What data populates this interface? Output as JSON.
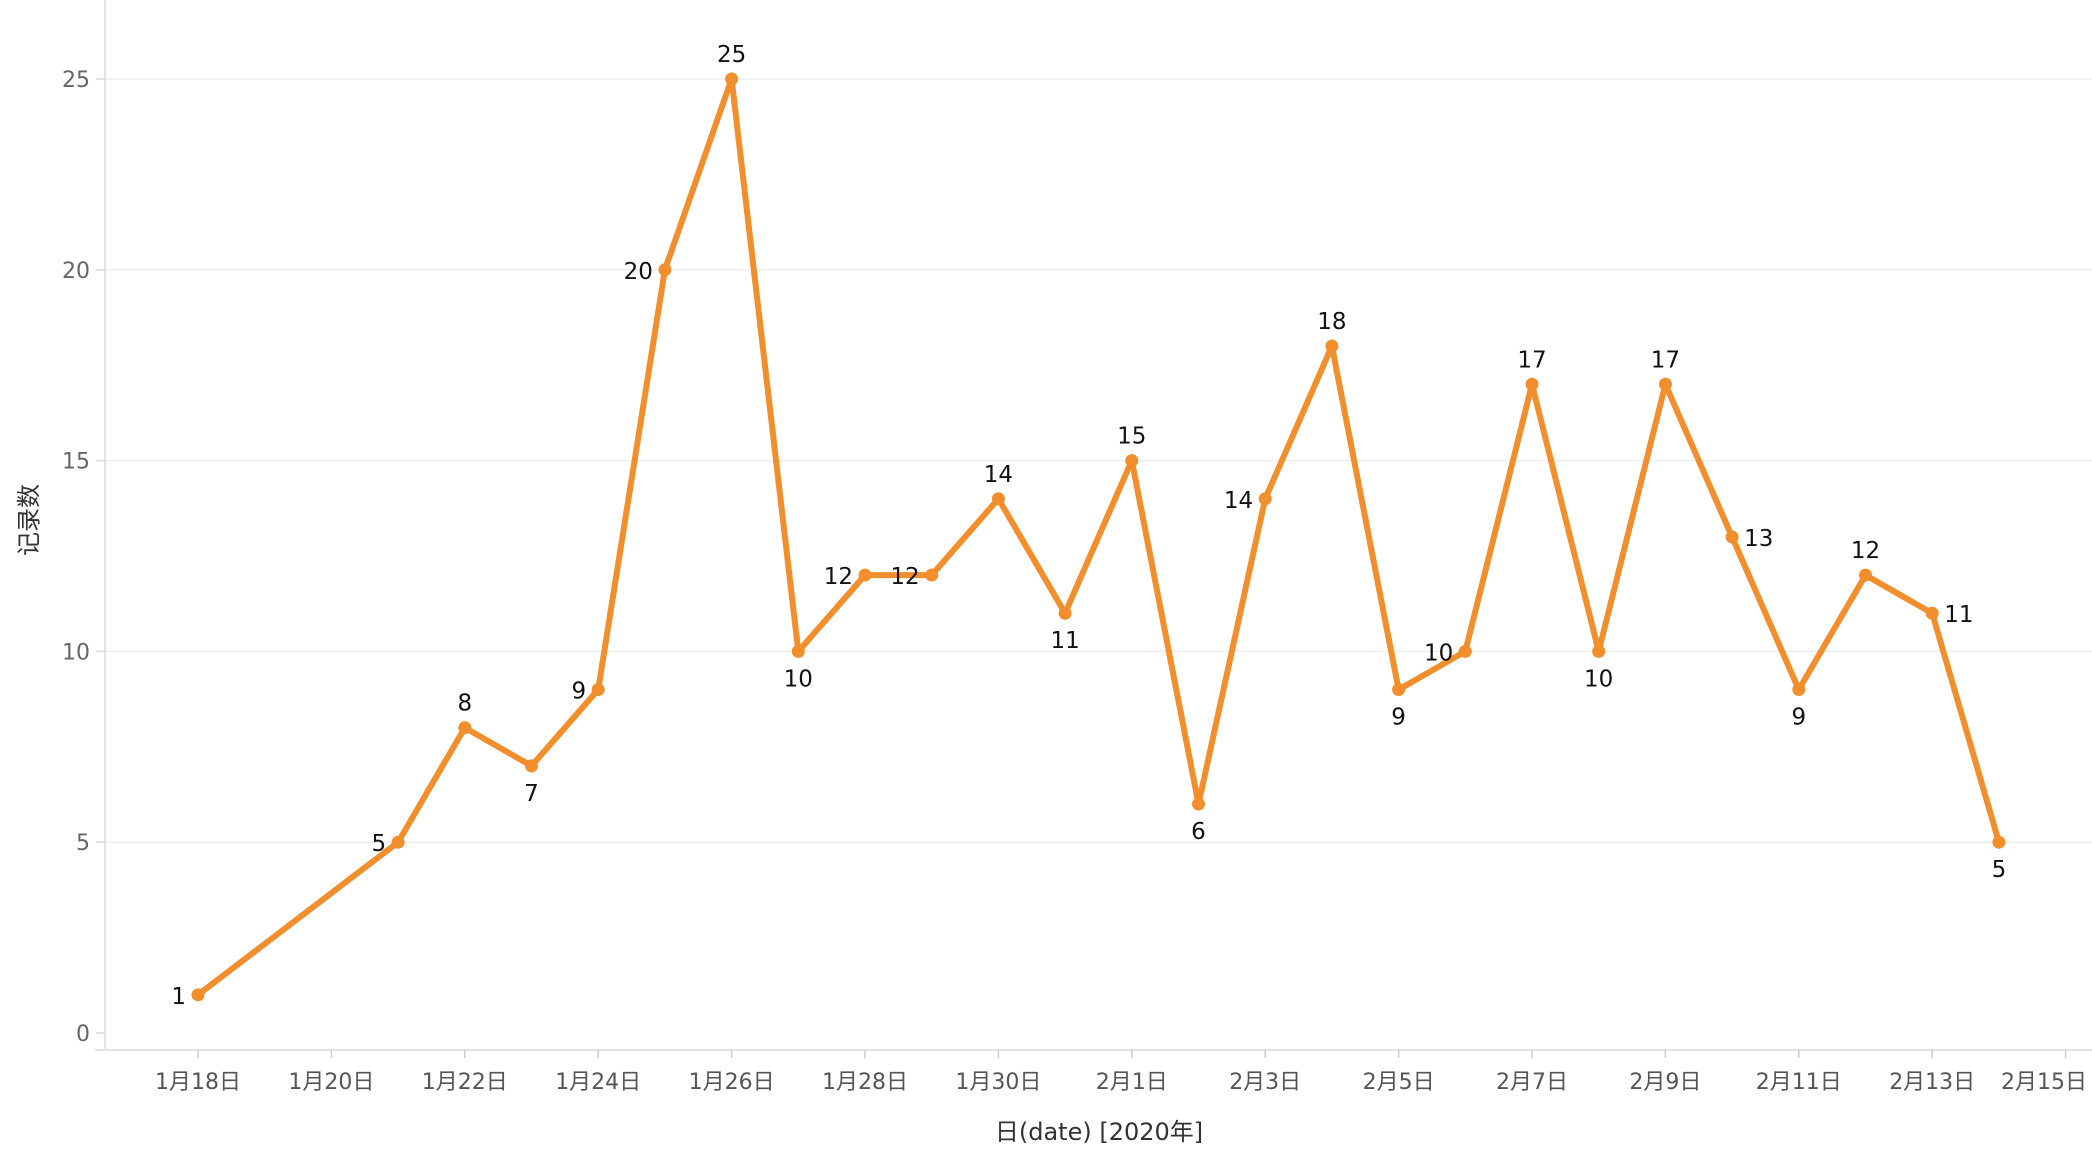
{
  "chart_data": {
    "type": "line",
    "xlabel": "日(date) [2020年]",
    "ylabel": "记录数",
    "ylim": [
      0,
      25
    ],
    "yticks": [
      "0",
      "5",
      "10",
      "15",
      "20",
      "25"
    ],
    "xticks": [
      "1月18日",
      "1月20日",
      "1月22日",
      "1月24日",
      "1月26日",
      "1月28日",
      "1月30日",
      "2月1日",
      "2月3日",
      "2月5日",
      "2月7日",
      "2月9日",
      "2月11日",
      "2月13日",
      "2月15日"
    ],
    "grid": true,
    "color": "#F28E2B",
    "x": [
      "2020-01-18",
      "2020-01-21",
      "2020-01-22",
      "2020-01-23",
      "2020-01-24",
      "2020-01-25",
      "2020-01-26",
      "2020-01-27",
      "2020-01-28",
      "2020-01-29",
      "2020-01-30",
      "2020-01-31",
      "2020-02-01",
      "2020-02-02",
      "2020-02-03",
      "2020-02-04",
      "2020-02-05",
      "2020-02-06",
      "2020-02-07",
      "2020-02-08",
      "2020-02-09",
      "2020-02-10",
      "2020-02-11",
      "2020-02-12",
      "2020-02-13",
      "2020-02-14"
    ],
    "values": [
      1,
      5,
      8,
      7,
      9,
      20,
      25,
      10,
      12,
      12,
      14,
      11,
      15,
      6,
      14,
      18,
      9,
      10,
      17,
      10,
      17,
      13,
      9,
      12,
      11,
      5
    ],
    "labels": [
      "1",
      "5",
      "8",
      "7",
      "9",
      "20",
      "25",
      "10",
      "12",
      "12",
      "14",
      "11",
      "15",
      "6",
      "14",
      "18",
      "9",
      "10",
      "17",
      "10",
      "17",
      "13",
      "9",
      "12",
      "11",
      "5"
    ]
  }
}
